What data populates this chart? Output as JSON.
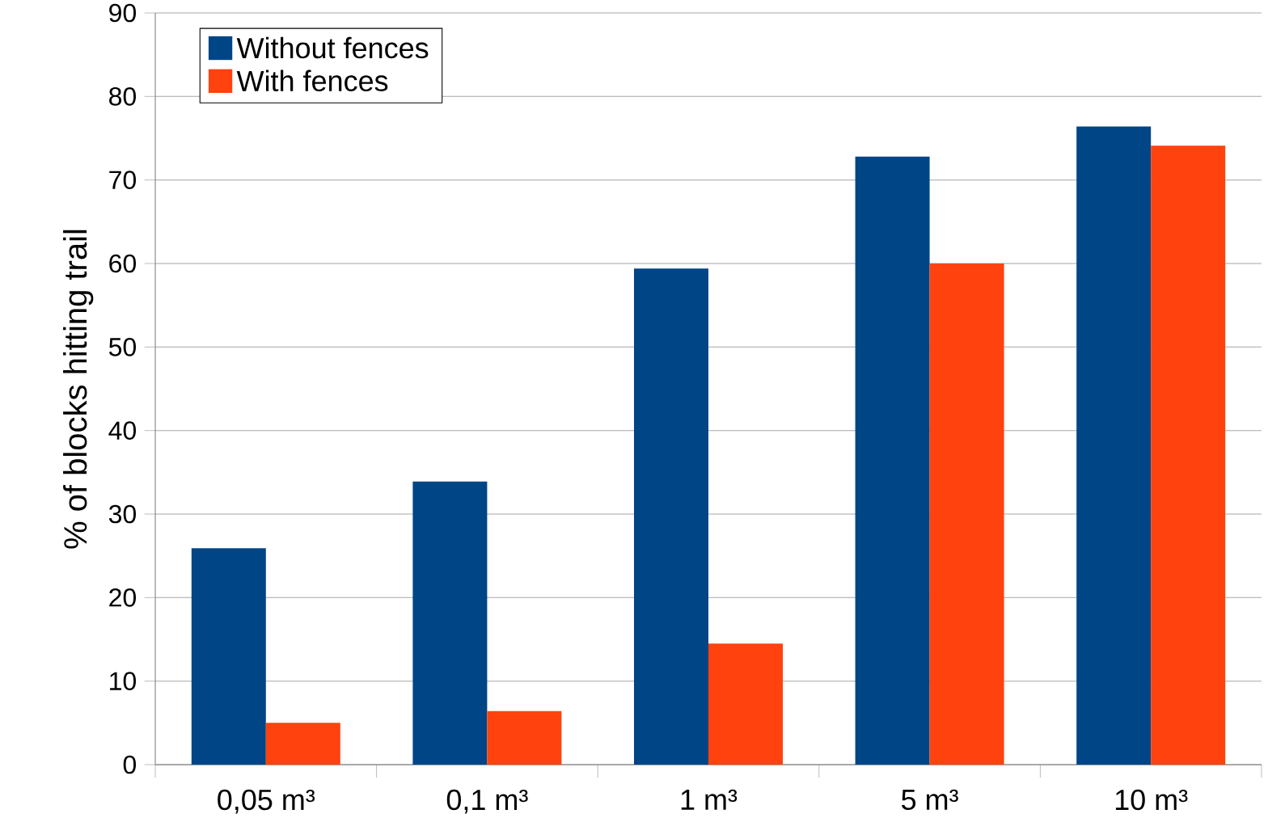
{
  "chart_data": {
    "type": "bar",
    "ylabel": "% of blocks hitting trail",
    "categories": [
      "0,05 m³",
      "0,1 m³",
      "1 m³",
      "5 m³",
      "10 m³"
    ],
    "series": [
      {
        "name": "Without fences",
        "color": "#004586",
        "values": [
          25.9,
          33.9,
          59.4,
          72.8,
          76.4
        ]
      },
      {
        "name": "With fences",
        "color": "#ff420e",
        "values": [
          5.0,
          6.4,
          14.5,
          60.0,
          74.1
        ]
      }
    ],
    "ylim": [
      0,
      90
    ],
    "yticks": [
      0,
      10,
      20,
      30,
      40,
      50,
      60,
      70,
      80,
      90
    ],
    "grid": "y",
    "legend": "top left"
  }
}
